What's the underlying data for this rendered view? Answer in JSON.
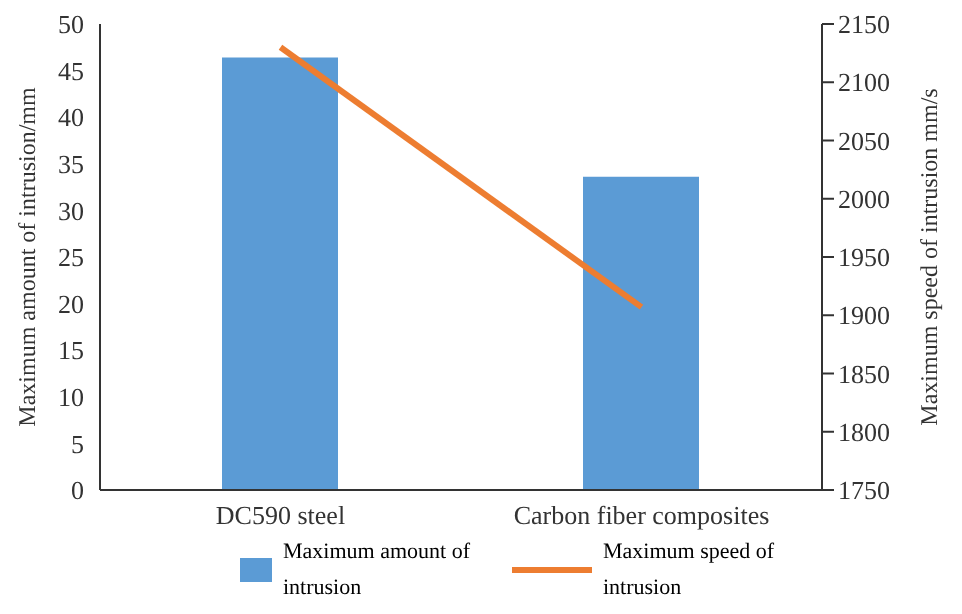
{
  "chart_data": {
    "type": "bar",
    "categories": [
      "DC590 steel",
      "Carbon fiber composites"
    ],
    "series": [
      {
        "name": "Maximum amount of intrusion",
        "color": "#5b9bd5",
        "values": [
          46.4,
          33.6
        ]
      },
      {
        "name": "Maximum speed of intrusion",
        "color": "#ed7d31",
        "values": [
          2130,
          1907
        ],
        "type": "line",
        "axis": "y2"
      }
    ],
    "ylabel": "Maximum amount of intrusion/mm",
    "y2label": "Maximum speed of intrusion mm/s",
    "ylim": [
      0,
      50
    ],
    "yticks": [
      0,
      5,
      10,
      15,
      20,
      25,
      30,
      35,
      40,
      45,
      50
    ],
    "y2lim": [
      1750,
      2150
    ],
    "y2ticks": [
      1750,
      1800,
      1850,
      1900,
      1950,
      2000,
      2050,
      2100,
      2150
    ],
    "grid": false,
    "legend": "bottom",
    "marker": "none"
  }
}
